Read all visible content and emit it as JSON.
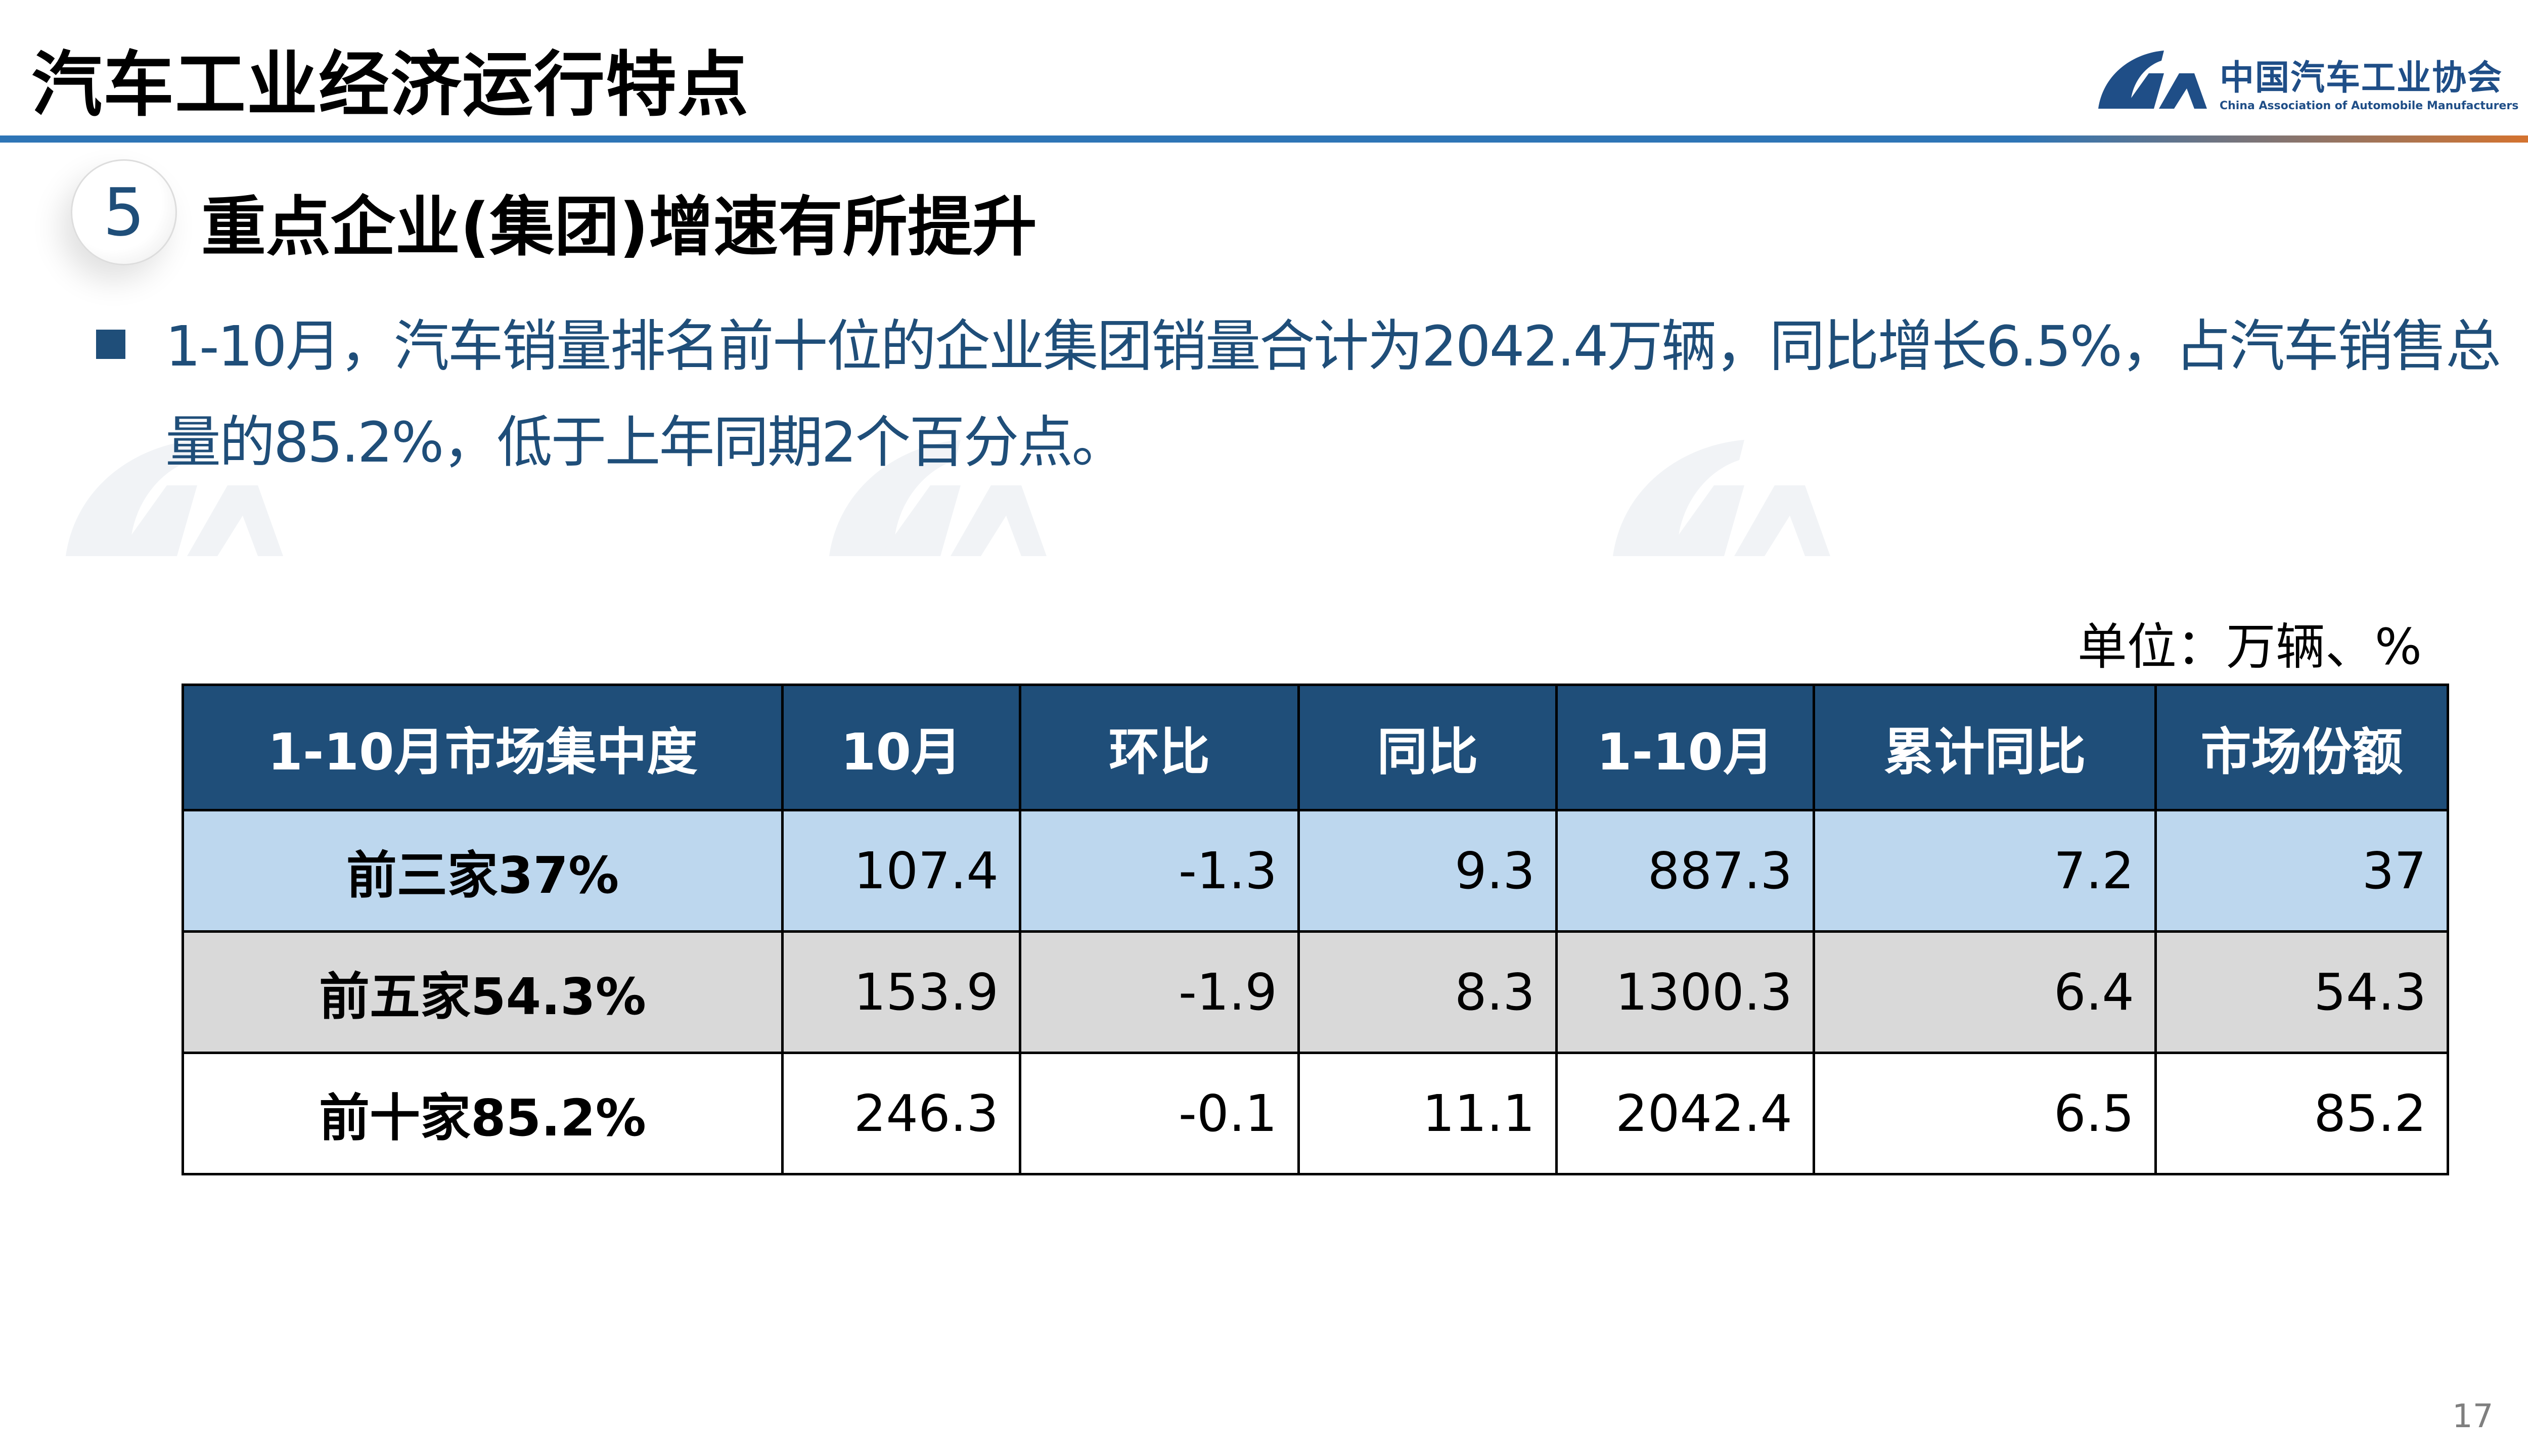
{
  "header": {
    "title": "汽车工业经济运行特点",
    "logo_cn": "中国汽车工业协会",
    "logo_en": "China Association of Automobile Manufacturers",
    "accent": "#2e75b6",
    "accent_end": "#e8731f"
  },
  "section": {
    "number": "5",
    "title": "重点企业(集团)增速有所提升"
  },
  "bullet": {
    "line1": "1-10月，汽车销量排名前十位的企业集团销量合计为2042.4万辆，同比增长6.5%，占汽车销售总",
    "line2": "量的85.2%，低于上年同期2个百分点。"
  },
  "unit": "单位：万辆、%",
  "table": {
    "headers": [
      "1-10月市场集中度",
      "10月",
      "环比",
      "同比",
      "1-10月",
      "累计同比",
      "市场份额"
    ],
    "rows": [
      [
        "前三家37%",
        "107.4",
        "-1.3",
        "9.3",
        "887.3",
        "7.2",
        "37"
      ],
      [
        "前五家54.3%",
        "153.9",
        "-1.9",
        "8.3",
        "1300.3",
        "6.4",
        "54.3"
      ],
      [
        "前十家85.2%",
        "246.3",
        "-0.1",
        "11.1",
        "2042.4",
        "6.5",
        "85.2"
      ]
    ],
    "colors": {
      "header": "#1f4e79",
      "row1": "#bdd7ee",
      "row2": "#d9d9d9"
    }
  },
  "page_number": "17"
}
